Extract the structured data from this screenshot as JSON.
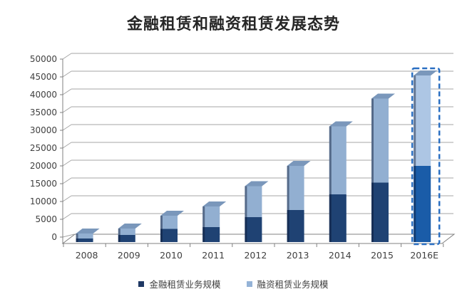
{
  "title": "金融租赁和融资租赁发展态势",
  "legend": {
    "items": [
      {
        "label": "金融租赁业务规模",
        "color": "#1F3864"
      },
      {
        "label": "融资租赁业务规模",
        "color": "#95B3D7"
      }
    ]
  },
  "axis": {
    "y_tick_labels": [
      "0",
      "5000",
      "10000",
      "15000",
      "20000",
      "25000",
      "30000",
      "35000",
      "40000",
      "45000",
      "50000"
    ],
    "x_tick_labels": [
      "2008",
      "2009",
      "2010",
      "2011",
      "2012",
      "2013",
      "2014",
      "2015",
      "2016E"
    ]
  },
  "chart_data": {
    "type": "bar",
    "subtype": "stacked-3d",
    "title": "金融租赁和融资租赁发展态势",
    "categories": [
      "2008",
      "2009",
      "2010",
      "2011",
      "2012",
      "2013",
      "2014",
      "2015",
      "2016E"
    ],
    "series": [
      {
        "name": "金融租赁业务规模",
        "color": "#1F4273",
        "values": [
          1000,
          2000,
          3700,
          4200,
          7000,
          9000,
          13400,
          16700,
          21400
        ]
      },
      {
        "name": "融资租赁业务规模",
        "color": "#92AFD1",
        "values": [
          1400,
          1800,
          3700,
          5800,
          8700,
          12400,
          19100,
          23600,
          25400
        ]
      }
    ],
    "totals": [
      2400,
      3800,
      7400,
      10000,
      15700,
      21400,
      32500,
      40300,
      46800
    ],
    "xlabel": "",
    "ylabel": "",
    "ylim": [
      0,
      50000
    ],
    "ytick_step": 5000,
    "grid": true,
    "legend_position": "bottom",
    "annotations": {
      "forecast_category": "2016E",
      "forecast_style": "dashed-blue-outline",
      "forecast_colors": {
        "outline": "#2A6FC2",
        "dark": "#1A5CA8",
        "light": "#ADC6E4"
      }
    }
  },
  "colors": {
    "background": "#FFFFFF",
    "gridline": "#A6A6A6",
    "axis_line": "#808080",
    "tick_label": "#404040",
    "title_text": "#262626",
    "bar_top_face": "#7A97BB",
    "bar_side_shadow": "rgba(10,22,48,0.45)"
  }
}
